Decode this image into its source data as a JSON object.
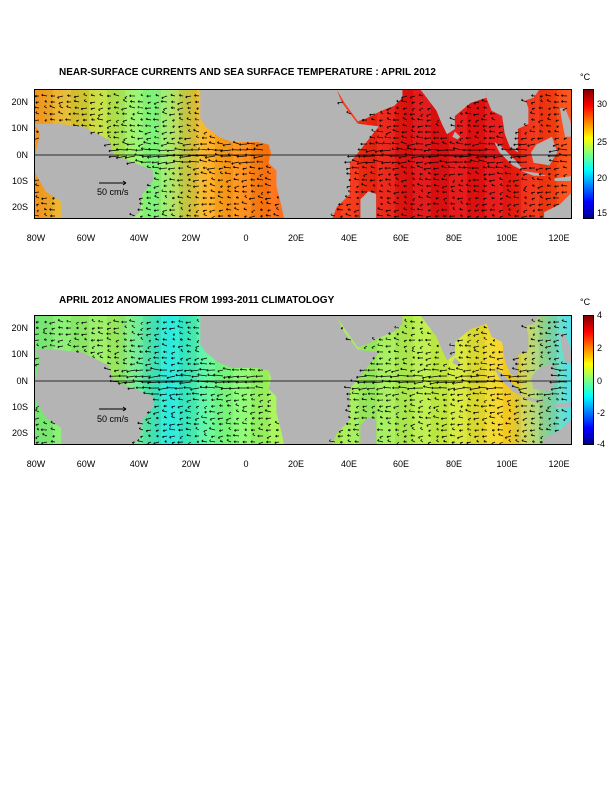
{
  "panels": [
    {
      "title": "NEAR-SURFACE CURRENTS AND SEA SURFACE TEMPERATURE : APRIL 2012",
      "unit": "°C",
      "colorbar_ticks": [
        "30",
        "25",
        "20",
        "15"
      ],
      "colorbar_range": [
        14,
        32
      ],
      "reference_vector_label": "50 cm/s",
      "lat_labels": [
        "20N",
        "10N",
        "0N",
        "10S",
        "20S"
      ],
      "lon_labels": [
        "80W",
        "60W",
        "40W",
        "20W",
        "0",
        "20E",
        "40E",
        "60E",
        "80E",
        "100E",
        "120E"
      ]
    },
    {
      "title": "APRIL 2012 ANOMALIES FROM 1993-2011 CLIMATOLOGY",
      "unit": "°C",
      "colorbar_ticks": [
        "4",
        "2",
        "0",
        "-2",
        "-4"
      ],
      "colorbar_range": [
        -4,
        4
      ],
      "reference_vector_label": "50 cm/s",
      "lat_labels": [
        "20N",
        "10N",
        "0N",
        "10S",
        "20S"
      ],
      "lon_labels": [
        "80W",
        "60W",
        "40W",
        "20W",
        "0",
        "20E",
        "40E",
        "60E",
        "80E",
        "100E",
        "120E"
      ]
    }
  ],
  "map_extent": {
    "lon_min": -80,
    "lon_max": 125,
    "lat_min": -25,
    "lat_max": 25
  },
  "colors": {
    "land": "#b4b4b4",
    "ocean_border": "#000000",
    "vector": "#000000"
  },
  "colormap": [
    "#00008f",
    "#0000ff",
    "#0080ff",
    "#00ffff",
    "#80ff80",
    "#ffff00",
    "#ff8000",
    "#ff0000",
    "#800000"
  ]
}
